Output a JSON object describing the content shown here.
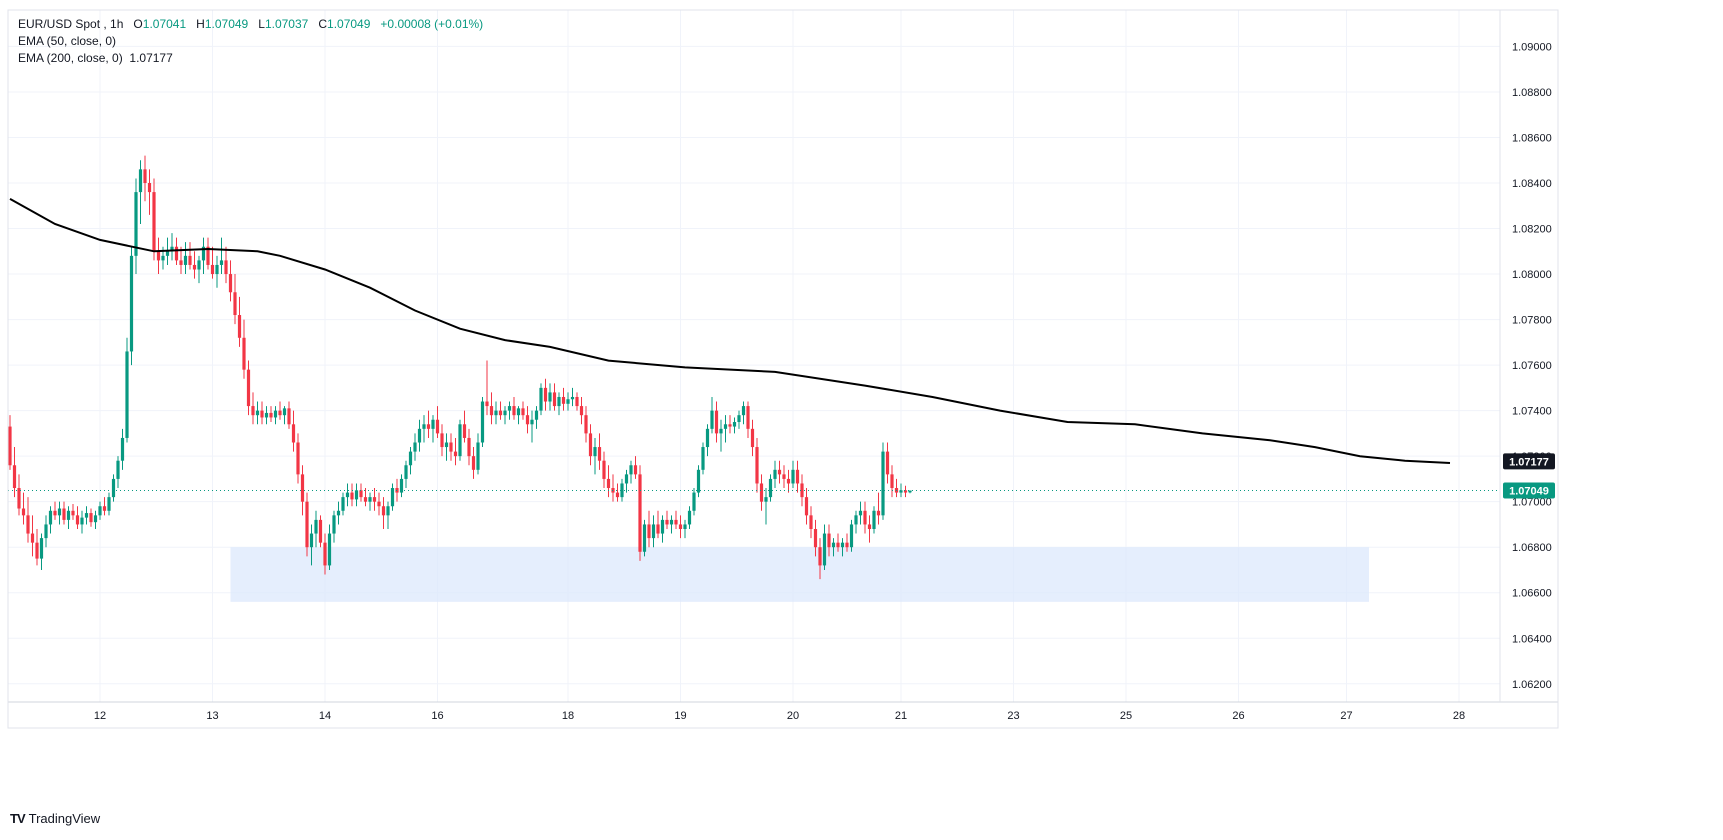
{
  "header": {
    "symbol": "EUR/USD Spot",
    "interval": "1h",
    "ohlc": {
      "o_label": "O",
      "o": "1.07041",
      "h_label": "H",
      "h": "1.07049",
      "l_label": "L",
      "l": "1.07037",
      "c_label": "C",
      "c": "1.07049",
      "change": "+0.00008 (+0.01%)"
    },
    "ema50_label": "EMA (50, close, 0)",
    "ema200_label": "EMA (200, close, 0)",
    "ema200_value": "1.07177"
  },
  "branding": {
    "logo_mark": "TV",
    "logo_text": "TradingView"
  },
  "colors": {
    "up": "#089981",
    "down": "#f23645",
    "ema200": "#000000",
    "zone": "#dce8fc",
    "grid": "#f0f3fa",
    "price_line": "#089981"
  },
  "chart_data": {
    "type": "candlestick",
    "y_ticks": [
      "1.09000",
      "1.08800",
      "1.08600",
      "1.08400",
      "1.08200",
      "1.08000",
      "1.07800",
      "1.07600",
      "1.07400",
      "1.07200",
      "1.07000",
      "1.06800",
      "1.06600",
      "1.06400",
      "1.06200"
    ],
    "ylim": [
      1.0612,
      1.0916
    ],
    "x_ticks": [
      "12",
      "13",
      "14",
      "16",
      "18",
      "19",
      "20",
      "21",
      "23",
      "25",
      "26",
      "27",
      "28"
    ],
    "x_tick_index": [
      20,
      45,
      70,
      95,
      124,
      149,
      174,
      198,
      223,
      248,
      273,
      297,
      322
    ],
    "last_price": "1.07049",
    "ema200_badge": "1.07177",
    "support_zone": {
      "low": 1.0656,
      "high": 1.068,
      "from_index": 49,
      "to_index": 302
    },
    "ema200_points": [
      [
        0,
        1.0833
      ],
      [
        10,
        1.0822
      ],
      [
        20,
        1.0815
      ],
      [
        32,
        1.081
      ],
      [
        44,
        1.0811
      ],
      [
        55,
        1.081
      ],
      [
        60,
        1.0808
      ],
      [
        70,
        1.0802
      ],
      [
        80,
        1.0794
      ],
      [
        90,
        1.0784
      ],
      [
        100,
        1.0776
      ],
      [
        110,
        1.0771
      ],
      [
        120,
        1.0768
      ],
      [
        133,
        1.0762
      ],
      [
        150,
        1.0759
      ],
      [
        170,
        1.0757
      ],
      [
        190,
        1.0751
      ],
      [
        205,
        1.0746
      ],
      [
        220,
        1.074
      ],
      [
        235,
        1.0735
      ],
      [
        250,
        1.0734
      ],
      [
        265,
        1.073
      ],
      [
        280,
        1.0727
      ],
      [
        290,
        1.0724
      ],
      [
        300,
        1.072
      ],
      [
        310,
        1.0718
      ],
      [
        320,
        1.0717
      ]
    ],
    "candles": [
      [
        1.0733,
        1.0738,
        1.0714,
        1.0716
      ],
      [
        1.0716,
        1.0724,
        1.0702,
        1.0706
      ],
      [
        1.0706,
        1.0712,
        1.0694,
        1.0697
      ],
      [
        1.0697,
        1.0704,
        1.069,
        1.0694
      ],
      [
        1.0694,
        1.0702,
        1.0682,
        1.0686
      ],
      [
        1.0686,
        1.0694,
        1.0676,
        1.0682
      ],
      [
        1.0682,
        1.0688,
        1.0672,
        1.0675
      ],
      [
        1.0675,
        1.0686,
        1.067,
        1.0684
      ],
      [
        1.0684,
        1.0694,
        1.068,
        1.069
      ],
      [
        1.069,
        1.0698,
        1.0686,
        1.0696
      ],
      [
        1.0696,
        1.07,
        1.0692,
        1.0694
      ],
      [
        1.0694,
        1.07,
        1.069,
        1.0697
      ],
      [
        1.0697,
        1.07,
        1.069,
        1.0692
      ],
      [
        1.0692,
        1.0698,
        1.0688,
        1.0696
      ],
      [
        1.0696,
        1.0699,
        1.0692,
        1.0694
      ],
      [
        1.0694,
        1.0698,
        1.0688,
        1.069
      ],
      [
        1.069,
        1.0696,
        1.0686,
        1.0693
      ],
      [
        1.0693,
        1.0698,
        1.069,
        1.0695
      ],
      [
        1.0695,
        1.0697,
        1.0689,
        1.0691
      ],
      [
        1.0691,
        1.0696,
        1.0688,
        1.0694
      ],
      [
        1.0694,
        1.07,
        1.0692,
        1.0698
      ],
      [
        1.0698,
        1.0702,
        1.0694,
        1.0696
      ],
      [
        1.0696,
        1.0704,
        1.0694,
        1.0702
      ],
      [
        1.0702,
        1.0712,
        1.07,
        1.071
      ],
      [
        1.071,
        1.072,
        1.0706,
        1.0718
      ],
      [
        1.0718,
        1.0732,
        1.0714,
        1.0728
      ],
      [
        1.0728,
        1.0772,
        1.0726,
        1.0766
      ],
      [
        1.0766,
        1.0812,
        1.076,
        1.0808
      ],
      [
        1.0808,
        1.0842,
        1.08,
        1.0836
      ],
      [
        1.0836,
        1.085,
        1.0822,
        1.0846
      ],
      [
        1.0846,
        1.0852,
        1.0832,
        1.084
      ],
      [
        1.084,
        1.0846,
        1.0826,
        1.0836
      ],
      [
        1.0836,
        1.0842,
        1.0806,
        1.081
      ],
      [
        1.081,
        1.0816,
        1.08,
        1.0806
      ],
      [
        1.0806,
        1.0812,
        1.0802,
        1.0808
      ],
      [
        1.0808,
        1.0816,
        1.0804,
        1.081
      ],
      [
        1.081,
        1.0818,
        1.0806,
        1.0812
      ],
      [
        1.0812,
        1.0816,
        1.0804,
        1.0806
      ],
      [
        1.0806,
        1.0812,
        1.08,
        1.0804
      ],
      [
        1.0804,
        1.0814,
        1.08,
        1.0808
      ],
      [
        1.0808,
        1.0814,
        1.0802,
        1.0804
      ],
      [
        1.0804,
        1.081,
        1.0798,
        1.0802
      ],
      [
        1.0802,
        1.0808,
        1.0796,
        1.0806
      ],
      [
        1.0806,
        1.0816,
        1.08,
        1.0812
      ],
      [
        1.0812,
        1.0816,
        1.0802,
        1.0804
      ],
      [
        1.0804,
        1.0812,
        1.0798,
        1.08
      ],
      [
        1.08,
        1.0808,
        1.0794,
        1.0804
      ],
      [
        1.0804,
        1.0816,
        1.08,
        1.0806
      ],
      [
        1.0806,
        1.0812,
        1.0796,
        1.08
      ],
      [
        1.08,
        1.0806,
        1.0788,
        1.0792
      ],
      [
        1.0792,
        1.08,
        1.0778,
        1.0782
      ],
      [
        1.0782,
        1.079,
        1.0768,
        1.0772
      ],
      [
        1.0772,
        1.078,
        1.0754,
        1.0758
      ],
      [
        1.0758,
        1.0762,
        1.0738,
        1.0742
      ],
      [
        1.0742,
        1.0748,
        1.0734,
        1.0738
      ],
      [
        1.0738,
        1.0744,
        1.0734,
        1.074
      ],
      [
        1.074,
        1.0744,
        1.0734,
        1.0737
      ],
      [
        1.0737,
        1.0742,
        1.0734,
        1.0739
      ],
      [
        1.0739,
        1.0742,
        1.0735,
        1.0737
      ],
      [
        1.0737,
        1.0742,
        1.0734,
        1.074
      ],
      [
        1.074,
        1.0744,
        1.0736,
        1.0738
      ],
      [
        1.0738,
        1.0742,
        1.0734,
        1.0741
      ],
      [
        1.0741,
        1.0744,
        1.0732,
        1.0734
      ],
      [
        1.0734,
        1.074,
        1.0722,
        1.0726
      ],
      [
        1.0726,
        1.073,
        1.0708,
        1.0712
      ],
      [
        1.0712,
        1.0716,
        1.0694,
        1.07
      ],
      [
        1.07,
        1.0704,
        1.0676,
        1.068
      ],
      [
        1.068,
        1.069,
        1.0672,
        1.0686
      ],
      [
        1.0686,
        1.0696,
        1.068,
        1.0692
      ],
      [
        1.0692,
        1.0694,
        1.068,
        1.0682
      ],
      [
        1.0682,
        1.0686,
        1.0668,
        1.0672
      ],
      [
        1.0672,
        1.069,
        1.067,
        1.0686
      ],
      [
        1.0686,
        1.0696,
        1.0682,
        1.0694
      ],
      [
        1.0694,
        1.07,
        1.069,
        1.0696
      ],
      [
        1.0696,
        1.0704,
        1.0694,
        1.0702
      ],
      [
        1.0702,
        1.0708,
        1.0698,
        1.0704
      ],
      [
        1.0704,
        1.0708,
        1.0698,
        1.0701
      ],
      [
        1.0701,
        1.0708,
        1.0698,
        1.0705
      ],
      [
        1.0705,
        1.0708,
        1.07,
        1.0702
      ],
      [
        1.0702,
        1.0706,
        1.0698,
        1.07
      ],
      [
        1.07,
        1.0704,
        1.0696,
        1.0702
      ],
      [
        1.0702,
        1.0706,
        1.0696,
        1.07
      ],
      [
        1.07,
        1.0704,
        1.0694,
        1.0698
      ],
      [
        1.0698,
        1.0702,
        1.0688,
        1.0694
      ],
      [
        1.0694,
        1.07,
        1.0688,
        1.0698
      ],
      [
        1.0698,
        1.0708,
        1.0696,
        1.0706
      ],
      [
        1.0706,
        1.071,
        1.07,
        1.0704
      ],
      [
        1.0704,
        1.0712,
        1.0702,
        1.071
      ],
      [
        1.071,
        1.0718,
        1.0706,
        1.0716
      ],
      [
        1.0716,
        1.0724,
        1.0712,
        1.0722
      ],
      [
        1.0722,
        1.073,
        1.0718,
        1.0726
      ],
      [
        1.0726,
        1.0736,
        1.0722,
        1.0732
      ],
      [
        1.0732,
        1.0738,
        1.0726,
        1.0734
      ],
      [
        1.0734,
        1.074,
        1.0728,
        1.0732
      ],
      [
        1.0732,
        1.0738,
        1.0726,
        1.0736
      ],
      [
        1.0736,
        1.0742,
        1.0728,
        1.073
      ],
      [
        1.073,
        1.0734,
        1.072,
        1.0724
      ],
      [
        1.0724,
        1.073,
        1.0718,
        1.0726
      ],
      [
        1.0726,
        1.073,
        1.0718,
        1.0722
      ],
      [
        1.0722,
        1.0728,
        1.0716,
        1.072
      ],
      [
        1.072,
        1.0736,
        1.0718,
        1.0734
      ],
      [
        1.0734,
        1.074,
        1.0726,
        1.0728
      ],
      [
        1.0728,
        1.0732,
        1.0716,
        1.072
      ],
      [
        1.072,
        1.0724,
        1.071,
        1.0714
      ],
      [
        1.0714,
        1.073,
        1.0712,
        1.0726
      ],
      [
        1.0726,
        1.0746,
        1.0724,
        1.0744
      ],
      [
        1.0744,
        1.0762,
        1.0738,
        1.0742
      ],
      [
        1.0742,
        1.0748,
        1.0734,
        1.0738
      ],
      [
        1.0738,
        1.0744,
        1.0734,
        1.074
      ],
      [
        1.074,
        1.0744,
        1.0736,
        1.0738
      ],
      [
        1.0738,
        1.0742,
        1.0734,
        1.074
      ],
      [
        1.074,
        1.0744,
        1.0736,
        1.0742
      ],
      [
        1.0742,
        1.0746,
        1.0736,
        1.0738
      ],
      [
        1.0738,
        1.0742,
        1.0734,
        1.0741
      ],
      [
        1.0741,
        1.0744,
        1.0736,
        1.0738
      ],
      [
        1.0738,
        1.0742,
        1.073,
        1.0734
      ],
      [
        1.0734,
        1.074,
        1.0726,
        1.0736
      ],
      [
        1.0736,
        1.0742,
        1.0732,
        1.074
      ],
      [
        1.074,
        1.0752,
        1.0738,
        1.075
      ],
      [
        1.075,
        1.0754,
        1.074,
        1.0744
      ],
      [
        1.0744,
        1.0752,
        1.074,
        1.0748
      ],
      [
        1.0748,
        1.0752,
        1.074,
        1.0742
      ],
      [
        1.0742,
        1.0748,
        1.0738,
        1.0746
      ],
      [
        1.0746,
        1.075,
        1.074,
        1.0743
      ],
      [
        1.0743,
        1.0748,
        1.074,
        1.0745
      ],
      [
        1.0745,
        1.075,
        1.0742,
        1.0746
      ],
      [
        1.0746,
        1.0748,
        1.074,
        1.0742
      ],
      [
        1.0742,
        1.0746,
        1.0734,
        1.0738
      ],
      [
        1.0738,
        1.0742,
        1.0726,
        1.073
      ],
      [
        1.073,
        1.0734,
        1.0716,
        1.072
      ],
      [
        1.072,
        1.0728,
        1.0712,
        1.0724
      ],
      [
        1.0724,
        1.073,
        1.0714,
        1.0718
      ],
      [
        1.0718,
        1.0722,
        1.0706,
        1.071
      ],
      [
        1.071,
        1.0716,
        1.0702,
        1.0706
      ],
      [
        1.0706,
        1.0712,
        1.07,
        1.0704
      ],
      [
        1.0704,
        1.0708,
        1.07,
        1.0702
      ],
      [
        1.0702,
        1.071,
        1.07,
        1.0708
      ],
      [
        1.0708,
        1.0714,
        1.0704,
        1.0712
      ],
      [
        1.0712,
        1.0718,
        1.0708,
        1.0716
      ],
      [
        1.0716,
        1.072,
        1.071,
        1.0712
      ],
      [
        1.0712,
        1.0716,
        1.0674,
        1.0678
      ],
      [
        1.0678,
        1.0692,
        1.0676,
        1.069
      ],
      [
        1.069,
        1.0696,
        1.068,
        1.0684
      ],
      [
        1.0684,
        1.0694,
        1.068,
        1.069
      ],
      [
        1.069,
        1.0696,
        1.0684,
        1.0686
      ],
      [
        1.0686,
        1.0694,
        1.0682,
        1.0692
      ],
      [
        1.0692,
        1.0696,
        1.0688,
        1.069
      ],
      [
        1.069,
        1.0694,
        1.0686,
        1.0692
      ],
      [
        1.0692,
        1.0696,
        1.0688,
        1.069
      ],
      [
        1.069,
        1.0694,
        1.0684,
        1.0688
      ],
      [
        1.0688,
        1.0692,
        1.0684,
        1.069
      ],
      [
        1.069,
        1.0698,
        1.0688,
        1.0696
      ],
      [
        1.0696,
        1.0706,
        1.0694,
        1.0704
      ],
      [
        1.0704,
        1.0716,
        1.0702,
        1.0714
      ],
      [
        1.0714,
        1.0726,
        1.0712,
        1.0724
      ],
      [
        1.0724,
        1.0734,
        1.072,
        1.0732
      ],
      [
        1.0732,
        1.0746,
        1.073,
        1.074
      ],
      [
        1.074,
        1.0744,
        1.0726,
        1.073
      ],
      [
        1.073,
        1.0736,
        1.0722,
        1.0732
      ],
      [
        1.0732,
        1.0738,
        1.0726,
        1.0734
      ],
      [
        1.0734,
        1.0738,
        1.073,
        1.0733
      ],
      [
        1.0733,
        1.0737,
        1.073,
        1.0735
      ],
      [
        1.0735,
        1.074,
        1.0732,
        1.0738
      ],
      [
        1.0738,
        1.0744,
        1.0734,
        1.0742
      ],
      [
        1.0742,
        1.0744,
        1.0728,
        1.0732
      ],
      [
        1.0732,
        1.0736,
        1.072,
        1.0724
      ],
      [
        1.0724,
        1.0728,
        1.0704,
        1.0708
      ],
      [
        1.0708,
        1.0712,
        1.0696,
        1.07
      ],
      [
        1.07,
        1.0706,
        1.069,
        1.0702
      ],
      [
        1.0702,
        1.0712,
        1.07,
        1.071
      ],
      [
        1.071,
        1.0718,
        1.0706,
        1.0714
      ],
      [
        1.0714,
        1.0718,
        1.0708,
        1.0712
      ],
      [
        1.0712,
        1.0716,
        1.0706,
        1.071
      ],
      [
        1.071,
        1.0714,
        1.0704,
        1.0708
      ],
      [
        1.0708,
        1.0718,
        1.0706,
        1.0714
      ],
      [
        1.0714,
        1.0718,
        1.0704,
        1.0708
      ],
      [
        1.0708,
        1.0712,
        1.0698,
        1.0702
      ],
      [
        1.0702,
        1.0706,
        1.069,
        1.0694
      ],
      [
        1.0694,
        1.0698,
        1.0684,
        1.0688
      ],
      [
        1.0688,
        1.0692,
        1.0676,
        1.068
      ],
      [
        1.068,
        1.0684,
        1.0666,
        1.0672
      ],
      [
        1.0672,
        1.069,
        1.067,
        1.0686
      ],
      [
        1.0686,
        1.069,
        1.0676,
        1.068
      ],
      [
        1.068,
        1.0684,
        1.0676,
        1.0682
      ],
      [
        1.0682,
        1.0686,
        1.0678,
        1.068
      ],
      [
        1.068,
        1.0684,
        1.0676,
        1.0682
      ],
      [
        1.0682,
        1.0686,
        1.0678,
        1.068
      ],
      [
        1.068,
        1.0692,
        1.0678,
        1.069
      ],
      [
        1.069,
        1.0696,
        1.0686,
        1.0694
      ],
      [
        1.0694,
        1.07,
        1.069,
        1.0696
      ],
      [
        1.0696,
        1.07,
        1.0686,
        1.069
      ],
      [
        1.069,
        1.0694,
        1.0682,
        1.0688
      ],
      [
        1.0688,
        1.0698,
        1.0686,
        1.0696
      ],
      [
        1.0696,
        1.0704,
        1.069,
        1.0694
      ],
      [
        1.0694,
        1.0726,
        1.0692,
        1.0722
      ],
      [
        1.0722,
        1.0726,
        1.0708,
        1.0712
      ],
      [
        1.0712,
        1.0716,
        1.0702,
        1.0706
      ],
      [
        1.0706,
        1.071,
        1.0702,
        1.0704
      ],
      [
        1.0704,
        1.0708,
        1.0702,
        1.0705
      ],
      [
        1.0705,
        1.0707,
        1.0702,
        1.0704
      ],
      [
        1.07041,
        1.07049,
        1.07037,
        1.07049
      ]
    ]
  }
}
